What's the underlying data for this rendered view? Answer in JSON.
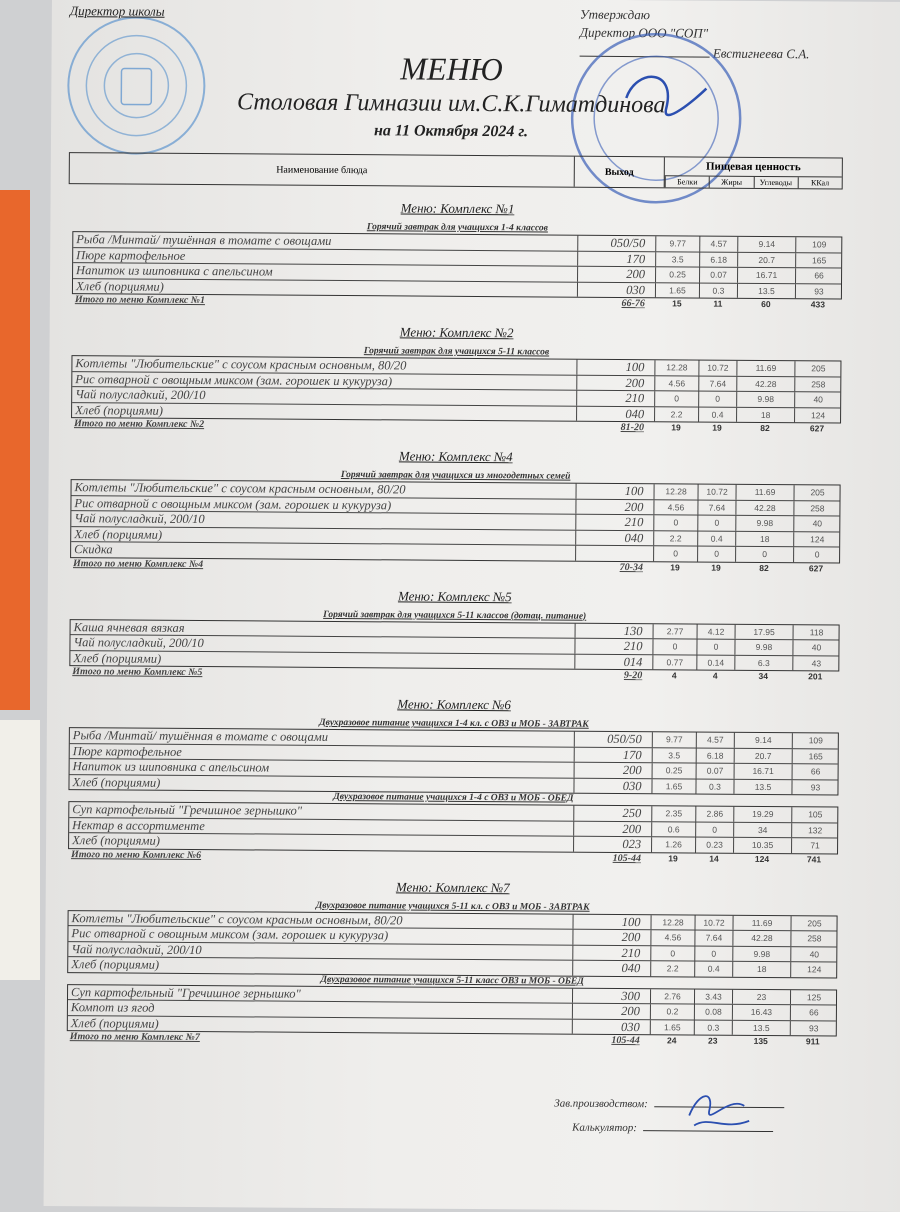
{
  "header": {
    "agreed": "Директор школы",
    "approve_label": "Утверждаю",
    "approve_position": "Директор ООО \"СОП\"",
    "approve_name": "Евстигнеева С.А.",
    "title": "МЕНЮ",
    "subtitle": "Столовая Гимназии им.С.К.Гиматдинова",
    "date": "на 11 Октября 2024 г."
  },
  "table_header": {
    "name": "Наименование блюда",
    "yield": "Выход",
    "nutrition": "Пищевая ценность",
    "columns": [
      "Белки",
      "Жиры",
      "Углеводы",
      "ККал"
    ]
  },
  "stamp_color": "#3a5fb8",
  "sections": [
    {
      "title": "Меню: Комплекс №1",
      "meals": [
        {
          "subtitle": "Горячий завтрак для учащихся 1-4 классов",
          "rows": [
            [
              "Рыба  /Минтай/ тушённая в томате с овощами",
              "050/50",
              "9.77",
              "4.57",
              "9.14",
              "109"
            ],
            [
              "Пюре картофельное",
              "170",
              "3.5",
              "6.18",
              "20.7",
              "165"
            ],
            [
              "Напиток из шиповника с апельсином",
              "200",
              "0.25",
              "0.07",
              "16.71",
              "66"
            ],
            [
              "Хлеб (порциями)",
              "030",
              "1.65",
              "0.3",
              "13.5",
              "93"
            ]
          ]
        }
      ],
      "total": [
        "Итого по меню Комплекс №1",
        "66-76",
        "15",
        "11",
        "60",
        "433"
      ]
    },
    {
      "title": "Меню: Комплекс №2",
      "meals": [
        {
          "subtitle": "Горячий завтрак для учащихся 5-11 классов",
          "rows": [
            [
              "Котлеты  \"Любительские\" с соусом красным основным, 80/20",
              "100",
              "12.28",
              "10.72",
              "11.69",
              "205"
            ],
            [
              "Рис отварной с овощным миксом (зам. горошек и кукуруза)",
              "200",
              "4.56",
              "7.64",
              "42.28",
              "258"
            ],
            [
              "Чай полусладкий, 200/10",
              "210",
              "0",
              "0",
              "9.98",
              "40"
            ],
            [
              "Хлеб (порциями)",
              "040",
              "2.2",
              "0.4",
              "18",
              "124"
            ]
          ]
        }
      ],
      "total": [
        "Итого по меню Комплекс №2",
        "81-20",
        "19",
        "19",
        "82",
        "627"
      ]
    },
    {
      "title": "Меню: Комплекс №4",
      "meals": [
        {
          "subtitle": "Горячий завтрак для учащихся из многодетных семей",
          "rows": [
            [
              "Котлеты  \"Любительские\" с соусом красным основным, 80/20",
              "100",
              "12.28",
              "10.72",
              "11.69",
              "205"
            ],
            [
              "Рис отварной с овощным миксом (зам. горошек и кукуруза)",
              "200",
              "4.56",
              "7.64",
              "42.28",
              "258"
            ],
            [
              "Чай полусладкий, 200/10",
              "210",
              "0",
              "0",
              "9.98",
              "40"
            ],
            [
              "Хлеб (порциями)",
              "040",
              "2.2",
              "0.4",
              "18",
              "124"
            ],
            [
              "Скидка",
              "",
              "0",
              "0",
              "0",
              "0"
            ]
          ]
        }
      ],
      "total": [
        "Итого по меню Комплекс №4",
        "70-34",
        "19",
        "19",
        "82",
        "627"
      ]
    },
    {
      "title": "Меню: Комплекс №5",
      "meals": [
        {
          "subtitle": "Горячий завтрак для учащихся 5-11 классов (дотац. питание)",
          "rows": [
            [
              "Каша ячневая вязкая",
              "130",
              "2.77",
              "4.12",
              "17.95",
              "118"
            ],
            [
              "Чай полусладкий, 200/10",
              "210",
              "0",
              "0",
              "9.98",
              "40"
            ],
            [
              "Хлеб (порциями)",
              "014",
              "0.77",
              "0.14",
              "6.3",
              "43"
            ]
          ]
        }
      ],
      "total": [
        "Итого по меню Комплекс №5",
        "9-20",
        "4",
        "4",
        "34",
        "201"
      ]
    },
    {
      "title": "Меню: Комплекс №6",
      "meals": [
        {
          "subtitle": "Двухразовое питание учащихся 1-4 кл. с ОВЗ и МОБ - ЗАВТРАК",
          "rows": [
            [
              "Рыба  /Минтай/ тушённая в томате с овощами",
              "050/50",
              "9.77",
              "4.57",
              "9.14",
              "109"
            ],
            [
              "Пюре картофельное",
              "170",
              "3.5",
              "6.18",
              "20.7",
              "165"
            ],
            [
              "Напиток из шиповника с апельсином",
              "200",
              "0.25",
              "0.07",
              "16.71",
              "66"
            ],
            [
              "Хлеб (порциями)",
              "030",
              "1.65",
              "0.3",
              "13.5",
              "93"
            ]
          ]
        },
        {
          "subtitle": "Двухразовое питание учащихся 1-4 с ОВЗ и МОБ - ОБЕД",
          "rows": [
            [
              "Суп картофельный \"Гречишное зернышко\"",
              "250",
              "2.35",
              "2.86",
              "19.29",
              "105"
            ],
            [
              "Нектар в ассортименте",
              "200",
              "0.6",
              "0",
              "34",
              "132"
            ],
            [
              "Хлеб (порциями)",
              "023",
              "1.26",
              "0.23",
              "10.35",
              "71"
            ]
          ]
        }
      ],
      "total": [
        "Итого по меню Комплекс №6",
        "105-44",
        "19",
        "14",
        "124",
        "741"
      ]
    },
    {
      "title": "Меню: Комплекс №7",
      "meals": [
        {
          "subtitle": "Двухразовое питание учащихся 5-11 кл. с  ОВЗ и МОБ - ЗАВТРАК",
          "rows": [
            [
              "Котлеты  \"Любительские\" с соусом красным основным, 80/20",
              "100",
              "12.28",
              "10.72",
              "11.69",
              "205"
            ],
            [
              "Рис отварной с овощным миксом (зам. горошек и кукуруза)",
              "200",
              "4.56",
              "7.64",
              "42.28",
              "258"
            ],
            [
              "Чай полусладкий, 200/10",
              "210",
              "0",
              "0",
              "9.98",
              "40"
            ],
            [
              "Хлеб (порциями)",
              "040",
              "2.2",
              "0.4",
              "18",
              "124"
            ]
          ]
        },
        {
          "subtitle": "Двухразовое питание учащихся 5-11 класс ОВЗ и МОБ - ОБЕД",
          "rows": [
            [
              "Суп картофельный \"Гречишное зернышко\"",
              "300",
              "2.76",
              "3.43",
              "23",
              "125"
            ],
            [
              "Компот из  ягод",
              "200",
              "0.2",
              "0.08",
              "16.43",
              "66"
            ],
            [
              "Хлеб (порциями)",
              "030",
              "1.65",
              "0.3",
              "13.5",
              "93"
            ]
          ]
        }
      ],
      "total": [
        "Итого по меню Комплекс №7",
        "105-44",
        "24",
        "23",
        "135",
        "911"
      ]
    }
  ],
  "footer": {
    "production_head": "Зав.производством:",
    "calculator": "Калькулятор:"
  }
}
